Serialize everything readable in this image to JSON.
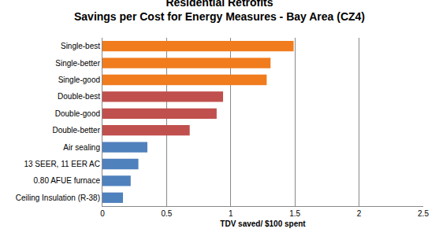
{
  "chart_data": {
    "type": "bar",
    "title": "Residential Retrofits",
    "subtitle": "Savings per Cost for Energy Measures - Bay Area (CZ4)",
    "x_label": "TDV saved/ $100 spent",
    "orientation": "horizontal",
    "categories": [
      "Single-best",
      "Single-better",
      "Single-good",
      "Double-best",
      "Double-good",
      "Double-better",
      "Air sealing",
      "13 SEER, 11 EER AC",
      "0.80 AFUE furnace",
      "Ceiling Insulation (R-38)"
    ],
    "values": [
      1.49,
      1.31,
      1.28,
      0.94,
      0.89,
      0.68,
      0.35,
      0.28,
      0.22,
      0.16
    ],
    "colors": [
      "#f07c1e",
      "#f07c1e",
      "#f07c1e",
      "#c0504d",
      "#c0504d",
      "#c0504d",
      "#4f81bd",
      "#4f81bd",
      "#4f81bd",
      "#4f81bd"
    ],
    "xlim": [
      0,
      2.5
    ],
    "xticks": [
      0,
      0.5,
      1,
      1.5,
      2,
      2.5
    ],
    "grid": true
  }
}
